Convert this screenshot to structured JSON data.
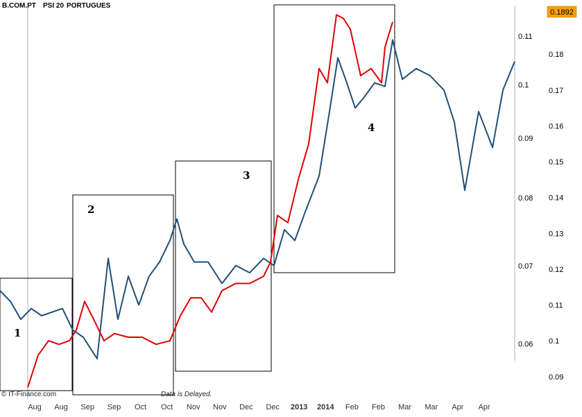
{
  "header": {
    "title_a": "B.COM.PT",
    "title_b": "PSI 20",
    "title_c": "PORTUGUES"
  },
  "footer": {
    "copyright": "© IT-Finance.com",
    "source": "Data is Delayed."
  },
  "badge": {
    "value": "0.1892",
    "color": "#f5a000"
  },
  "chart_data": {
    "type": "line",
    "title": "",
    "x_ticks": [
      "Aug",
      "Aug",
      "Sep",
      "Sep",
      "Oct",
      "Oct",
      "Nov",
      "Nov",
      "Dec",
      "Dec",
      "2013",
      "2014",
      "Feb",
      "Feb",
      "Mar",
      "Mar",
      "Apr",
      "Apr"
    ],
    "y_axis_right_outer": {
      "ticks": [
        "0.18",
        "0.17",
        "0.16",
        "0.15",
        "0.14",
        "0.13",
        "0.12",
        "0.11",
        "0.1",
        "0.09"
      ],
      "range": [
        0.0855,
        0.1932
      ],
      "scale": "linear"
    },
    "y_axis_right_inner": {
      "ticks": [
        "0.11",
        "0.1",
        "0.09",
        "0.08",
        "0.07",
        "0.06"
      ],
      "range": [
        0.0545,
        0.1165
      ],
      "scale": "log"
    },
    "series": [
      {
        "color": "#1f4e79",
        "axis": "right_outer",
        "x": [
          0,
          15,
          30,
          45,
          60,
          75,
          90,
          105,
          120,
          140,
          156,
          170,
          185,
          200,
          215,
          230,
          245,
          255,
          265,
          280,
          300,
          320,
          340,
          360,
          380,
          395,
          410,
          425,
          440,
          460,
          475,
          487,
          500,
          512,
          525,
          540,
          555,
          566,
          580,
          600,
          620,
          640,
          655,
          670,
          690,
          710,
          725,
          742
        ],
        "values": [
          0.114,
          0.111,
          0.106,
          0.109,
          0.107,
          0.108,
          0.109,
          0.103,
          0.101,
          0.095,
          0.123,
          0.106,
          0.118,
          0.11,
          0.118,
          0.122,
          0.128,
          0.134,
          0.127,
          0.122,
          0.122,
          0.116,
          0.121,
          0.119,
          0.123,
          0.121,
          0.131,
          0.128,
          0.136,
          0.146,
          0.164,
          0.179,
          0.172,
          0.165,
          0.168,
          0.172,
          0.171,
          0.184,
          0.173,
          0.176,
          0.174,
          0.17,
          0.161,
          0.142,
          0.164,
          0.154,
          0.17,
          0.178
        ]
      },
      {
        "color": "#e00000",
        "axis": "right_outer",
        "x": [
          40,
          55,
          70,
          85,
          100,
          110,
          122,
          135,
          150,
          165,
          185,
          205,
          225,
          245,
          260,
          275,
          290,
          305,
          320,
          340,
          360,
          380,
          390,
          400,
          415,
          430,
          445,
          460,
          472,
          485,
          495,
          505,
          520,
          535,
          550,
          555,
          566
        ],
        "values": [
          0.087,
          0.096,
          0.1,
          0.099,
          0.1,
          0.103,
          0.111,
          0.106,
          0.1,
          0.102,
          0.101,
          0.101,
          0.099,
          0.1,
          0.107,
          0.112,
          0.112,
          0.108,
          0.114,
          0.116,
          0.116,
          0.118,
          0.122,
          0.135,
          0.133,
          0.145,
          0.155,
          0.176,
          0.172,
          0.191,
          0.19,
          0.187,
          0.174,
          0.176,
          0.172,
          0.182,
          0.189
        ]
      }
    ],
    "annotations": [
      "1",
      "2",
      "3",
      "4"
    ],
    "grid": false
  }
}
